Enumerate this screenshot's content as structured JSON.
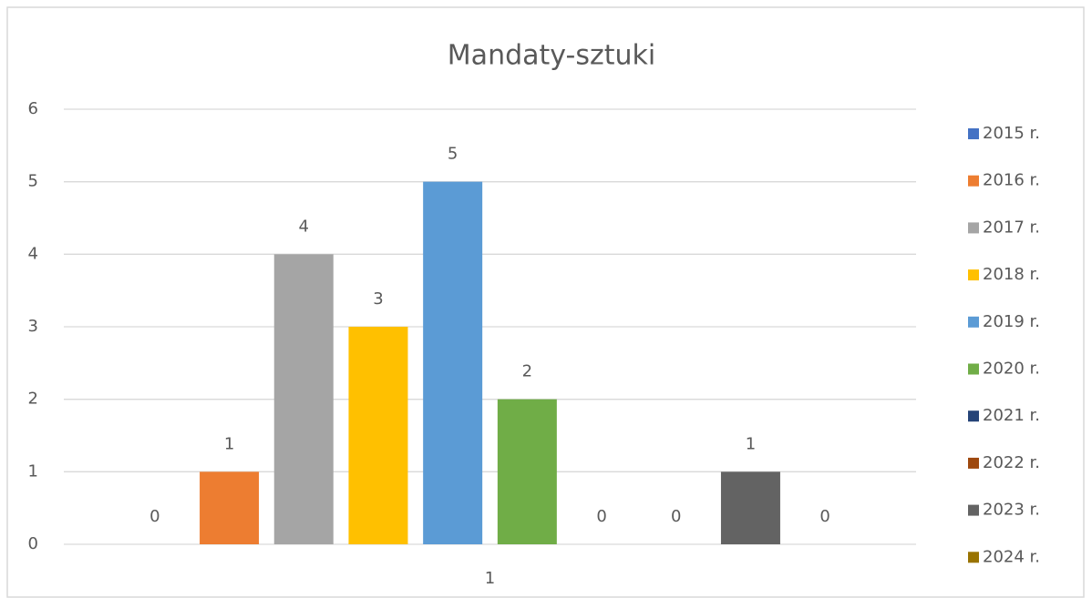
{
  "chart_data": {
    "type": "bar",
    "title": "Mandaty-sztuki",
    "categories": [
      "1"
    ],
    "series": [
      {
        "name": "2015 r.",
        "color": "#4472c4",
        "values": [
          0
        ]
      },
      {
        "name": "2016 r.",
        "color": "#ed7d31",
        "values": [
          1
        ]
      },
      {
        "name": "2017 r.",
        "color": "#a5a5a5",
        "values": [
          4
        ]
      },
      {
        "name": "2018 r.",
        "color": "#ffc000",
        "values": [
          3
        ]
      },
      {
        "name": "2019 r.",
        "color": "#5b9bd5",
        "values": [
          5
        ]
      },
      {
        "name": "2020 r.",
        "color": "#70ad47",
        "values": [
          2
        ]
      },
      {
        "name": "2021 r.",
        "color": "#264478",
        "values": [
          0
        ]
      },
      {
        "name": "2022 r.",
        "color": "#9e480e",
        "values": [
          0
        ]
      },
      {
        "name": "2023 r.",
        "color": "#636363",
        "values": [
          1
        ]
      },
      {
        "name": "2024 r.",
        "color": "#997300",
        "values": [
          0
        ]
      }
    ],
    "ylim": [
      0,
      6
    ],
    "yticks": [
      0,
      1,
      2,
      3,
      4,
      5,
      6
    ],
    "grid": true,
    "legend": "right"
  }
}
